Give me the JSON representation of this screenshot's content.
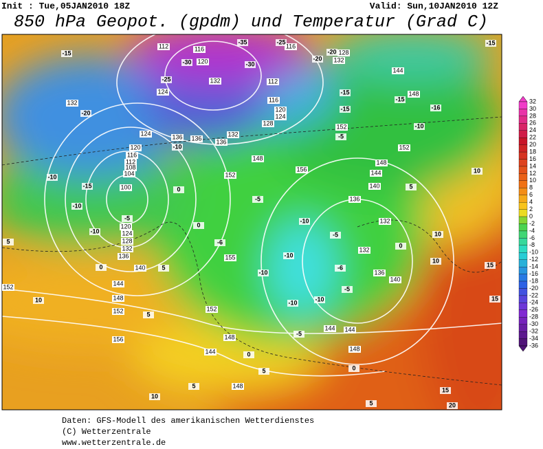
{
  "header": {
    "init": "Init : Tue,05JAN2010 18Z",
    "valid": "Valid: Sun,10JAN2010 12Z",
    "title": "850 hPa Geopot. (gpdm) und Temperatur (Grad C)"
  },
  "legend": {
    "labels": [
      32,
      30,
      28,
      26,
      24,
      22,
      20,
      18,
      16,
      14,
      12,
      10,
      8,
      6,
      4,
      2,
      0,
      -2,
      -4,
      -6,
      -8,
      -10,
      -12,
      -14,
      -16,
      -18,
      -20,
      -22,
      -24,
      -26,
      -28,
      -30,
      -32,
      -34,
      -36
    ]
  },
  "map": {
    "geopotential_labels": [
      132,
      124,
      116,
      112,
      120,
      132,
      124,
      120,
      116,
      112,
      108,
      104,
      100,
      120,
      124,
      128,
      132,
      136,
      140,
      144,
      148,
      152,
      156,
      152,
      136,
      136,
      136,
      132,
      148,
      152,
      156,
      155,
      152,
      148,
      144,
      148,
      144,
      144,
      148,
      136,
      140,
      132,
      132,
      136,
      140,
      144,
      148,
      152,
      152,
      144,
      148,
      128,
      120,
      124,
      116,
      112,
      132,
      128,
      116
    ],
    "temperature_labels": [
      -15,
      -20,
      -30,
      -25,
      -35,
      -25,
      -30,
      -20,
      -20,
      -15,
      -15,
      -15,
      -16,
      -15,
      -10,
      -5,
      -10,
      -15,
      -10,
      -10,
      -10,
      -5,
      0,
      0,
      -5,
      -10,
      -5,
      -10,
      -10,
      -10,
      -10,
      -6,
      -5,
      -5,
      0,
      0,
      10,
      10,
      10,
      5,
      10,
      5,
      0,
      5,
      5,
      5,
      10,
      15,
      20,
      15,
      15,
      -6,
      0,
      5,
      5
    ]
  },
  "footer": {
    "lines": [
      "Daten: GFS-Modell des amerikanischen Wetterdienstes",
      "(C) Wetterzentrale",
      "www.wetterzentrale.de"
    ]
  }
}
